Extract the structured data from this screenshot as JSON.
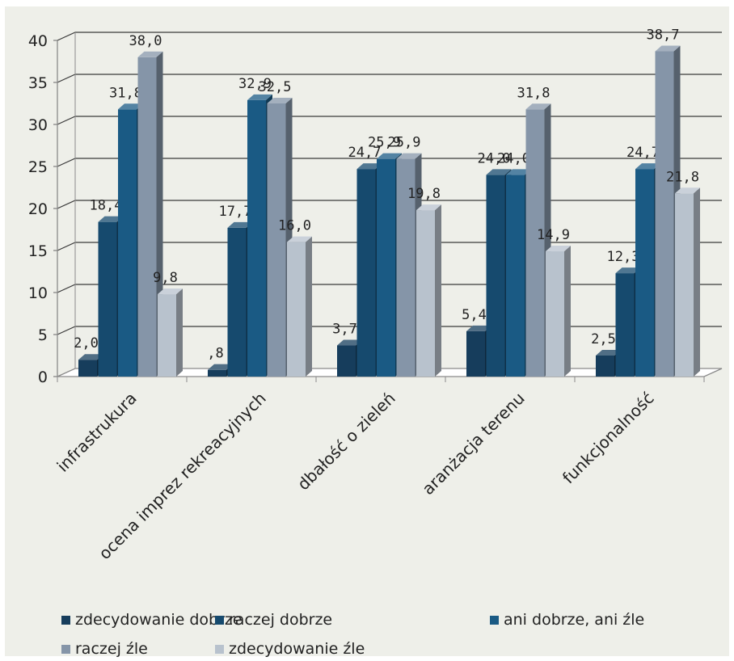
{
  "chart_data": {
    "type": "bar",
    "categories": [
      "infrastrukura",
      "ocena imprez rekreacyjnych",
      "dbałość o zieleń",
      "aranżacja terenu",
      "funkcjonalność"
    ],
    "series": [
      {
        "name": "zdecydowanie dobrze",
        "color": "#163d5c",
        "values": [
          2.0,
          0.8,
          3.7,
          5.4,
          2.5
        ],
        "labels": [
          "2,0",
          ",8",
          "3,7",
          "5,4",
          "2,5"
        ]
      },
      {
        "name": "raczej dobrze",
        "color": "#164a6e",
        "values": [
          18.4,
          17.7,
          24.7,
          24.0,
          12.3
        ],
        "labels": [
          "18,4",
          "17,7",
          "24,7",
          "24,0",
          "12,3"
        ]
      },
      {
        "name": "ani dobrze, ani źle",
        "color": "#1a5a84",
        "values": [
          31.8,
          32.9,
          25.9,
          24.0,
          24.7
        ],
        "labels": [
          "31,8",
          "32,9",
          "25,9",
          "24,0",
          "24,7"
        ]
      },
      {
        "name": "raczej źle",
        "color": "#8595a8",
        "values": [
          38.0,
          32.5,
          25.9,
          31.8,
          38.7
        ],
        "labels": [
          "38,0",
          "32,5",
          "25,9",
          "31,8",
          "38,7"
        ]
      },
      {
        "name": "zdecydowanie źle",
        "color": "#b8c2cd",
        "values": [
          9.8,
          16.0,
          19.8,
          14.9,
          21.8
        ],
        "labels": [
          "9,8",
          "16,0",
          "19,8",
          "14,9",
          "21,8"
        ]
      }
    ],
    "y_ticks": [
      "0",
      "5",
      "10",
      "15",
      "20",
      "25",
      "30",
      "35",
      "40"
    ],
    "ylim": [
      0,
      40
    ],
    "grid": true,
    "legend_position": "bottom"
  }
}
